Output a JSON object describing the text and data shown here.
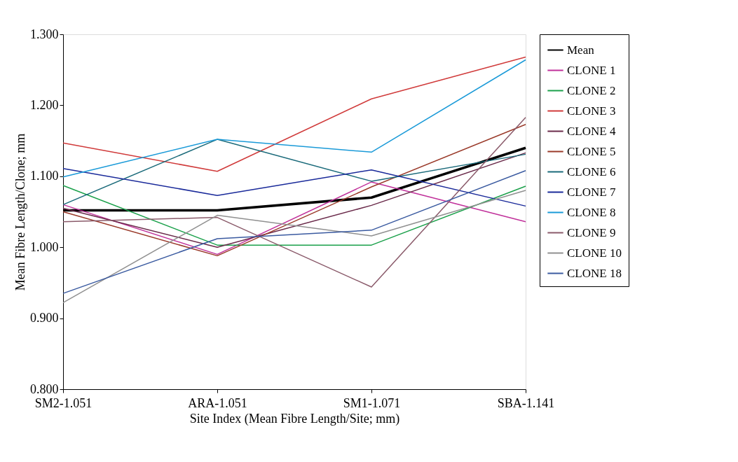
{
  "chart_data": {
    "type": "line",
    "xlabel": "Site Index (Mean Fibre Length/Site;  mm)",
    "ylabel": "Mean Fibre Length/Clone; mm",
    "categories": [
      "SM2-1.051",
      "ARA-1.051",
      "SM1-1.071",
      "SBA-1.141"
    ],
    "ylim": [
      0.8,
      1.3
    ],
    "yticks": [
      {
        "value": 0.8,
        "label": "0.800"
      },
      {
        "value": 0.9,
        "label": "0.900"
      },
      {
        "value": 1.0,
        "label": "1.000"
      },
      {
        "value": 1.1,
        "label": "1.100"
      },
      {
        "value": 1.2,
        "label": "1.200"
      },
      {
        "value": 1.3,
        "label": "1.300"
      }
    ],
    "grid": false,
    "legend": "right",
    "marker": "none",
    "line_style": "solid",
    "series": [
      {
        "name": "Mean",
        "color": "#000000",
        "values": [
          1.052,
          1.052,
          1.07,
          1.14
        ]
      },
      {
        "name": "CLONE 1",
        "color": "#c0309a",
        "values": [
          1.06,
          0.99,
          1.092,
          1.036
        ]
      },
      {
        "name": "CLONE 2",
        "color": "#1aa04a",
        "values": [
          1.087,
          1.003,
          1.003,
          1.086
        ]
      },
      {
        "name": "CLONE 3",
        "color": "#d03a3a",
        "values": [
          1.147,
          1.107,
          1.209,
          1.268
        ]
      },
      {
        "name": "CLONE 4",
        "color": "#6a2a4a",
        "values": [
          1.055,
          1.0,
          1.059,
          1.133
        ]
      },
      {
        "name": "CLONE 5",
        "color": "#9a3a2a",
        "values": [
          1.05,
          0.988,
          1.085,
          1.173
        ]
      },
      {
        "name": "CLONE 6",
        "color": "#1a6a7a",
        "values": [
          1.06,
          1.152,
          1.093,
          1.131
        ]
      },
      {
        "name": "CLONE 7",
        "color": "#1a2a9a",
        "values": [
          1.111,
          1.073,
          1.109,
          1.058
        ]
      },
      {
        "name": "CLONE 8",
        "color": "#1a9ad8",
        "values": [
          1.099,
          1.152,
          1.134,
          1.264
        ]
      },
      {
        "name": "CLONE 9",
        "color": "#8a5a6a",
        "values": [
          1.036,
          1.042,
          0.944,
          1.183
        ]
      },
      {
        "name": "CLONE 10",
        "color": "#909090",
        "values": [
          0.922,
          1.045,
          1.016,
          1.08
        ]
      },
      {
        "name": "CLONE 18",
        "color": "#3a5aa0",
        "values": [
          0.935,
          1.012,
          1.024,
          1.108
        ]
      }
    ]
  }
}
